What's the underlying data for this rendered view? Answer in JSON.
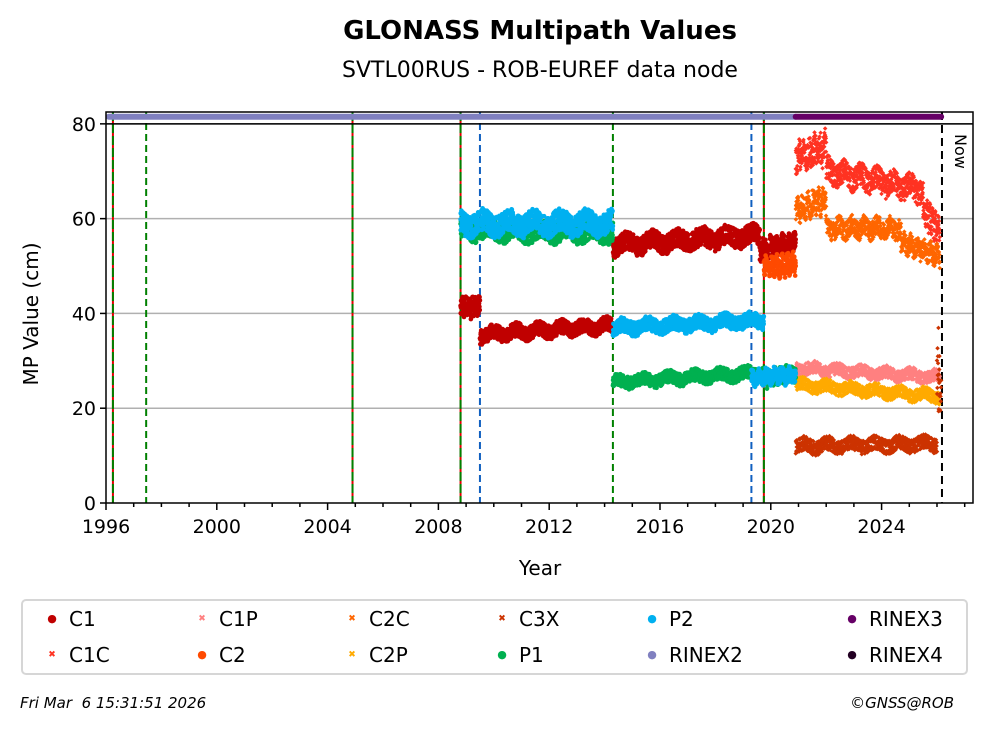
{
  "chart_data": {
    "type": "scatter",
    "title": "GLONASS Multipath Values",
    "subtitle": "SVTL00RUS - ROB-EUREF data node",
    "xlabel": "Year",
    "ylabel": "MP Value (cm)",
    "xlim": [
      1996,
      2027.3
    ],
    "ylim": [
      0,
      82.5
    ],
    "xticks": [
      "1996",
      "2000",
      "2004",
      "2008",
      "2012",
      "2016",
      "2020",
      "2024"
    ],
    "xtick_values": [
      1996,
      2000,
      2004,
      2008,
      2012,
      2016,
      2020,
      2024
    ],
    "yticks": [
      "0",
      "20",
      "40",
      "60",
      "80"
    ],
    "ytick_values": [
      0,
      20,
      40,
      60,
      80
    ],
    "grid": "horizontal",
    "now_label": "Now",
    "now_year": 2026.18,
    "event_lines": [
      {
        "year": 1996.25,
        "style": "red-green"
      },
      {
        "year": 1997.45,
        "style": "green-dashed"
      },
      {
        "year": 2004.9,
        "style": "red-green"
      },
      {
        "year": 2008.8,
        "style": "red-green"
      },
      {
        "year": 2009.5,
        "style": "blue-dashed"
      },
      {
        "year": 2014.3,
        "style": "green-dashed"
      },
      {
        "year": 2019.3,
        "style": "blue-dashed"
      },
      {
        "year": 2019.75,
        "style": "red-green"
      }
    ],
    "rinex_bars": [
      {
        "name": "RINEX2",
        "start": 1996.1,
        "end": 2020.9,
        "value": 81.5
      },
      {
        "name": "RINEX3",
        "start": 2020.9,
        "end": 2026.15,
        "value": 81.5
      }
    ],
    "series": [
      {
        "name": "C1",
        "marker": "dot",
        "color": "#c00000",
        "segments": [
          {
            "start": 2008.8,
            "end": 2009.5,
            "level": 41.5,
            "spread": 2.0
          },
          {
            "start": 2009.5,
            "end": 2014.3,
            "level": 35.5,
            "level_end": 37.5,
            "spread": 1.5
          },
          {
            "start": 2014.3,
            "end": 2019.6,
            "level": 54.5,
            "level_end": 56.5,
            "spread": 2.0
          },
          {
            "start": 2019.6,
            "end": 2020.9,
            "level": 53.5,
            "level_end": 55,
            "spread": 2.0
          }
        ]
      },
      {
        "name": "C1C",
        "marker": "x",
        "color": "#ff3322",
        "segments": [
          {
            "start": 2020.9,
            "end": 2022.0,
            "level": 73,
            "level_end": 75,
            "spread": 3.0
          },
          {
            "start": 2022.0,
            "end": 2025.5,
            "level": 70,
            "level_end": 66,
            "spread": 2.5
          },
          {
            "start": 2025.5,
            "end": 2026.1,
            "level": 62,
            "level_end": 57,
            "spread": 2.5
          }
        ]
      },
      {
        "name": "C1P",
        "marker": "x",
        "color": "#ff8080",
        "segments": [
          {
            "start": 2020.9,
            "end": 2026.1,
            "level": 28.5,
            "level_end": 26.5,
            "spread": 1.3
          }
        ]
      },
      {
        "name": "C2",
        "marker": "dot",
        "color": "#ff4a00",
        "segments": [
          {
            "start": 2019.75,
            "end": 2020.9,
            "level": 49.5,
            "level_end": 50.5,
            "spread": 2.0
          }
        ]
      },
      {
        "name": "C2C",
        "marker": "x",
        "color": "#ff6600",
        "segments": [
          {
            "start": 2020.9,
            "end": 2022.0,
            "level": 62,
            "level_end": 64,
            "spread": 2.5
          },
          {
            "start": 2022.0,
            "end": 2024.7,
            "level": 58,
            "level_end": 58,
            "spread": 2.0
          },
          {
            "start": 2024.7,
            "end": 2026.1,
            "level": 55,
            "level_end": 52,
            "spread": 2.0
          }
        ]
      },
      {
        "name": "C2P",
        "marker": "x",
        "color": "#ffaa00",
        "segments": [
          {
            "start": 2020.9,
            "end": 2026.1,
            "level": 25,
            "level_end": 22.5,
            "spread": 1.3
          }
        ]
      },
      {
        "name": "C3X",
        "marker": "x",
        "color": "#cc3300",
        "segments": [
          {
            "start": 2020.9,
            "end": 2026.0,
            "level": 12,
            "level_end": 12.5,
            "spread": 1.5
          },
          {
            "start": 2026.0,
            "end": 2026.15,
            "level": 27,
            "level_end": 27,
            "spread": 8.0
          }
        ]
      },
      {
        "name": "P1",
        "marker": "dot",
        "color": "#00b050",
        "segments": [
          {
            "start": 2008.8,
            "end": 2014.3,
            "level": 57.5,
            "level_end": 57,
            "spread": 2.0
          },
          {
            "start": 2014.3,
            "end": 2019.75,
            "level": 25.5,
            "level_end": 27.5,
            "spread": 1.3
          },
          {
            "start": 2019.75,
            "end": 2020.9,
            "level": 26,
            "level_end": 27.5,
            "spread": 1.5
          }
        ]
      },
      {
        "name": "P2",
        "marker": "dot",
        "color": "#00b0f0",
        "segments": [
          {
            "start": 2008.8,
            "end": 2014.3,
            "level": 59,
            "level_end": 59,
            "spread": 2.3
          },
          {
            "start": 2014.3,
            "end": 2019.75,
            "level": 37,
            "level_end": 38.5,
            "spread": 1.5
          },
          {
            "start": 2019.3,
            "end": 2020.9,
            "level": 26.5,
            "level_end": 27,
            "spread": 1.5
          }
        ]
      }
    ],
    "legend": [
      {
        "label": "C1",
        "marker": "dot",
        "color": "#c00000"
      },
      {
        "label": "C1C",
        "marker": "x",
        "color": "#ff3322"
      },
      {
        "label": "C1P",
        "marker": "x",
        "color": "#ff8080"
      },
      {
        "label": "C2",
        "marker": "dot",
        "color": "#ff4a00"
      },
      {
        "label": "C2C",
        "marker": "x",
        "color": "#ff6600"
      },
      {
        "label": "C2P",
        "marker": "x",
        "color": "#ffaa00"
      },
      {
        "label": "C3X",
        "marker": "x",
        "color": "#cc3300"
      },
      {
        "label": "P1",
        "marker": "dot",
        "color": "#00b050"
      },
      {
        "label": "P2",
        "marker": "dot",
        "color": "#00b0f0"
      },
      {
        "label": "RINEX2",
        "marker": "dot",
        "color": "#8080c0"
      },
      {
        "label": "RINEX3",
        "marker": "dot",
        "color": "#660066"
      },
      {
        "label": "RINEX4",
        "marker": "dot",
        "color": "#220022"
      }
    ],
    "legend_placement": "below"
  },
  "footer": {
    "timestamp": "Fri Mar  6 15:31:51 2026",
    "credit": "©GNSS@ROB"
  }
}
